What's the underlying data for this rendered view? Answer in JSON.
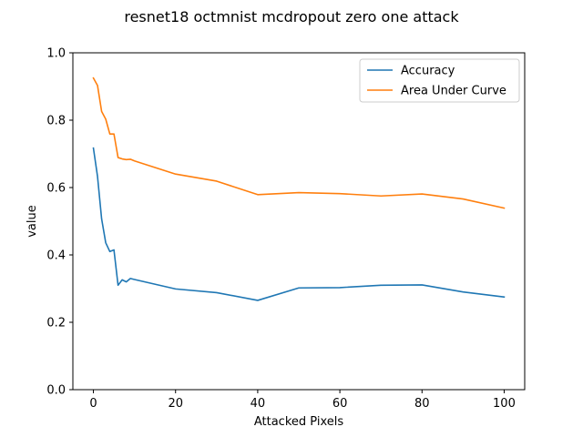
{
  "chart_data": {
    "type": "line",
    "title": "resnet18 octmnist mcdropout zero one attack",
    "xlabel": "Attacked Pixels",
    "ylabel": "value",
    "xlim": [
      -5,
      105
    ],
    "ylim": [
      0.0,
      1.0
    ],
    "xticks": [
      "0",
      "20",
      "40",
      "60",
      "80",
      "100"
    ],
    "yticks": [
      "0.0",
      "0.2",
      "0.4",
      "0.6",
      "0.8",
      "1.0"
    ],
    "grid": false,
    "legend_position": "top-right",
    "x": [
      0,
      1,
      2,
      3,
      4,
      5,
      6,
      7,
      8,
      9,
      10,
      20,
      30,
      40,
      50,
      60,
      70,
      80,
      90,
      100
    ],
    "series": [
      {
        "name": "Accuracy",
        "color": "#1f77b4",
        "values": [
          0.717,
          0.633,
          0.507,
          0.436,
          0.41,
          0.415,
          0.31,
          0.326,
          0.32,
          0.33,
          0.327,
          0.299,
          0.288,
          0.265,
          0.302,
          0.303,
          0.31,
          0.311,
          0.29,
          0.275
        ]
      },
      {
        "name": "Area Under Curve",
        "color": "#ff7f0e",
        "values": [
          0.925,
          0.903,
          0.826,
          0.803,
          0.759,
          0.759,
          0.689,
          0.685,
          0.683,
          0.684,
          0.679,
          0.64,
          0.619,
          0.579,
          0.585,
          0.582,
          0.575,
          0.581,
          0.566,
          0.539
        ]
      }
    ]
  }
}
